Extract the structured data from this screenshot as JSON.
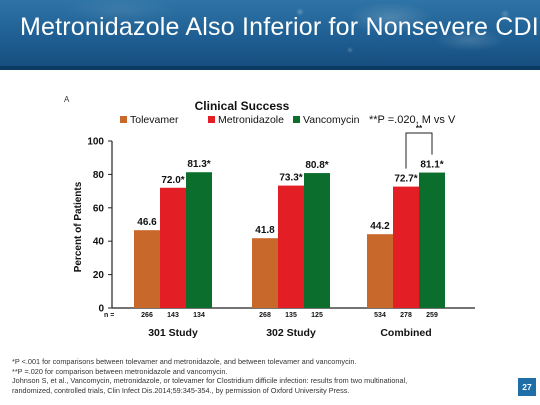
{
  "slide": {
    "title": "Metronidazole Also Inferior for Nonsevere CDI",
    "page_number": "27"
  },
  "chart_data": {
    "type": "bar",
    "panel_letter": "A",
    "title": "Clinical Success",
    "annotation": "**P =.020, M vs V",
    "bracket_label": "**",
    "ylabel": "Percent of Patients",
    "ylim": [
      0,
      100
    ],
    "yticks": [
      "0",
      "20",
      "40",
      "60",
      "80",
      "100"
    ],
    "categories": [
      "301 Study",
      "302 Study",
      "Combined"
    ],
    "series": [
      {
        "name": "Tolevamer",
        "color": "#c9682b",
        "values": [
          46.6,
          41.8,
          44.2
        ],
        "labels": [
          "46.6",
          "41.8",
          "44.2"
        ],
        "n": [
          "266",
          "268",
          "534"
        ]
      },
      {
        "name": "Metronidazole",
        "color": "#e31e24",
        "values": [
          72.0,
          73.3,
          72.7
        ],
        "labels": [
          "72.0*",
          "73.3*",
          "72.7*"
        ],
        "n": [
          "143",
          "135",
          "278"
        ]
      },
      {
        "name": "Vancomycin",
        "color": "#0b6e2c",
        "values": [
          81.3,
          80.8,
          81.1
        ],
        "labels": [
          "81.3*",
          "80.8*",
          "81.1*"
        ],
        "n": [
          "134",
          "125",
          "259"
        ]
      }
    ],
    "n_label": "n =",
    "grid": false,
    "legend_position": "top"
  },
  "footnotes": [
    "*P <.001 for comparisons between tolevamer and metronidazole, and between tolevamer and vancomycin.",
    "**P =.020 for comparison between metronidazole and vancomycin.",
    "Johnson S, et al., Vancomycin, metronidazole, or tolevamer for Clostridium difficile infection: results from two multinational,",
    "randomized, controlled trials, Clin Infect Dis.2014;59:345-354., by permission of Oxford University Press."
  ]
}
